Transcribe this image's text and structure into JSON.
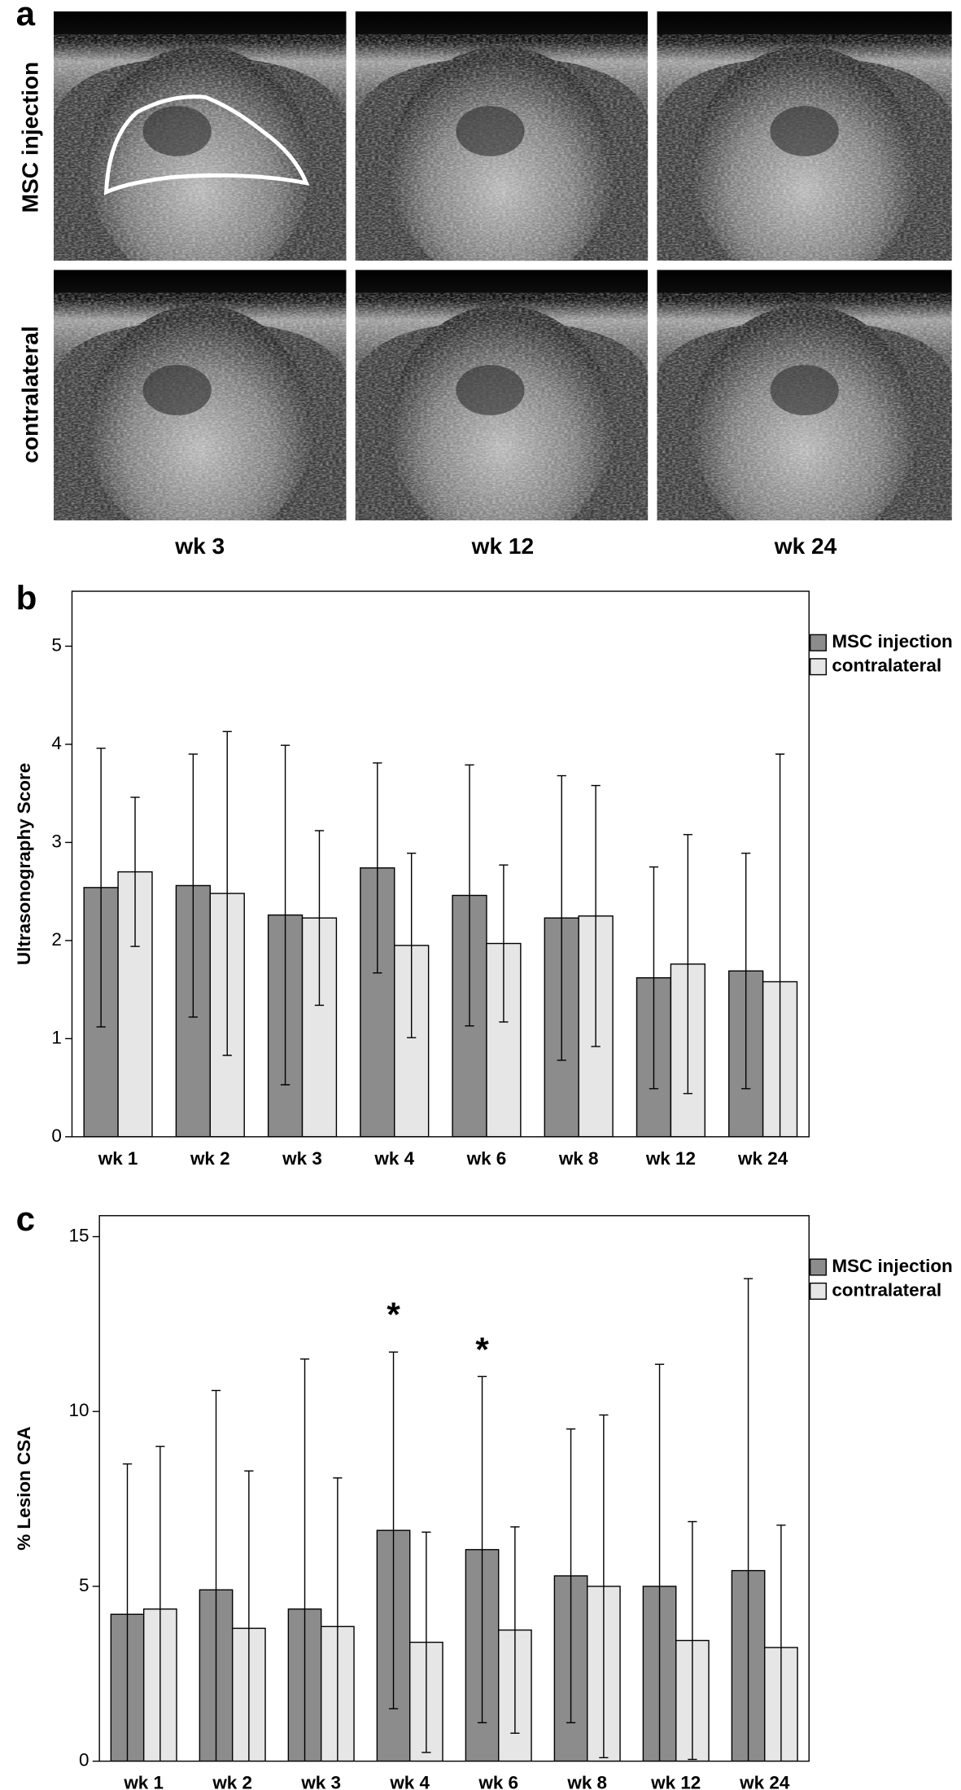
{
  "panel_a": {
    "label": "a",
    "rows": [
      "MSC injection",
      "contralateral"
    ],
    "columns": [
      "wk 3",
      "wk 12",
      "wk 24"
    ]
  },
  "chart_data": [
    {
      "type": "bar",
      "label": "b",
      "y_label": "Ultrasonography Score",
      "categories": [
        "wk 1",
        "wk 2",
        "wk 3",
        "wk 4",
        "wk 6",
        "wk 8",
        "wk 12",
        "wk 24"
      ],
      "series": [
        {
          "name": "MSC injection",
          "color": "#8c8c8c",
          "values": [
            2.54,
            2.56,
            2.26,
            2.74,
            2.46,
            2.23,
            1.62,
            1.69
          ],
          "errors": [
            1.42,
            1.34,
            1.73,
            1.07,
            1.33,
            1.45,
            1.13,
            1.2
          ]
        },
        {
          "name": "contralateral",
          "color": "#e6e6e6",
          "values": [
            2.7,
            2.48,
            2.23,
            1.95,
            1.97,
            2.25,
            1.76,
            1.58
          ],
          "errors": [
            0.76,
            1.65,
            0.89,
            0.94,
            0.8,
            1.33,
            1.32,
            2.32
          ]
        }
      ],
      "ylim": [
        0,
        5.56
      ],
      "yticks": [
        0,
        1,
        2,
        3,
        4,
        5
      ],
      "legend": "upper right"
    },
    {
      "type": "bar",
      "label": "c",
      "y_label": "% Lesion CSA",
      "categories": [
        "wk 1",
        "wk 2",
        "wk 3",
        "wk 4",
        "wk 6",
        "wk 8",
        "wk 12",
        "wk 24"
      ],
      "series": [
        {
          "name": "MSC injection",
          "color": "#8c8c8c",
          "values": [
            4.2,
            4.9,
            4.35,
            6.6,
            6.05,
            5.3,
            5.0,
            5.45
          ],
          "errors": [
            4.3,
            5.7,
            7.15,
            5.1,
            4.95,
            4.2,
            6.35,
            8.35
          ]
        },
        {
          "name": "contralateral",
          "color": "#e6e6e6",
          "values": [
            4.35,
            3.8,
            3.85,
            3.4,
            3.75,
            5.0,
            3.45,
            3.25
          ],
          "errors": [
            4.65,
            4.5,
            4.25,
            3.15,
            2.95,
            4.9,
            3.4,
            3.5
          ]
        }
      ],
      "ylim": [
        0,
        15.6
      ],
      "yticks": [
        0,
        5,
        10,
        15
      ],
      "legend": "upper right",
      "annotations": [
        {
          "text": "*",
          "x": "wk 4",
          "y": 12.7
        },
        {
          "text": "*",
          "x": "wk 6",
          "y": 11.7
        }
      ]
    }
  ]
}
